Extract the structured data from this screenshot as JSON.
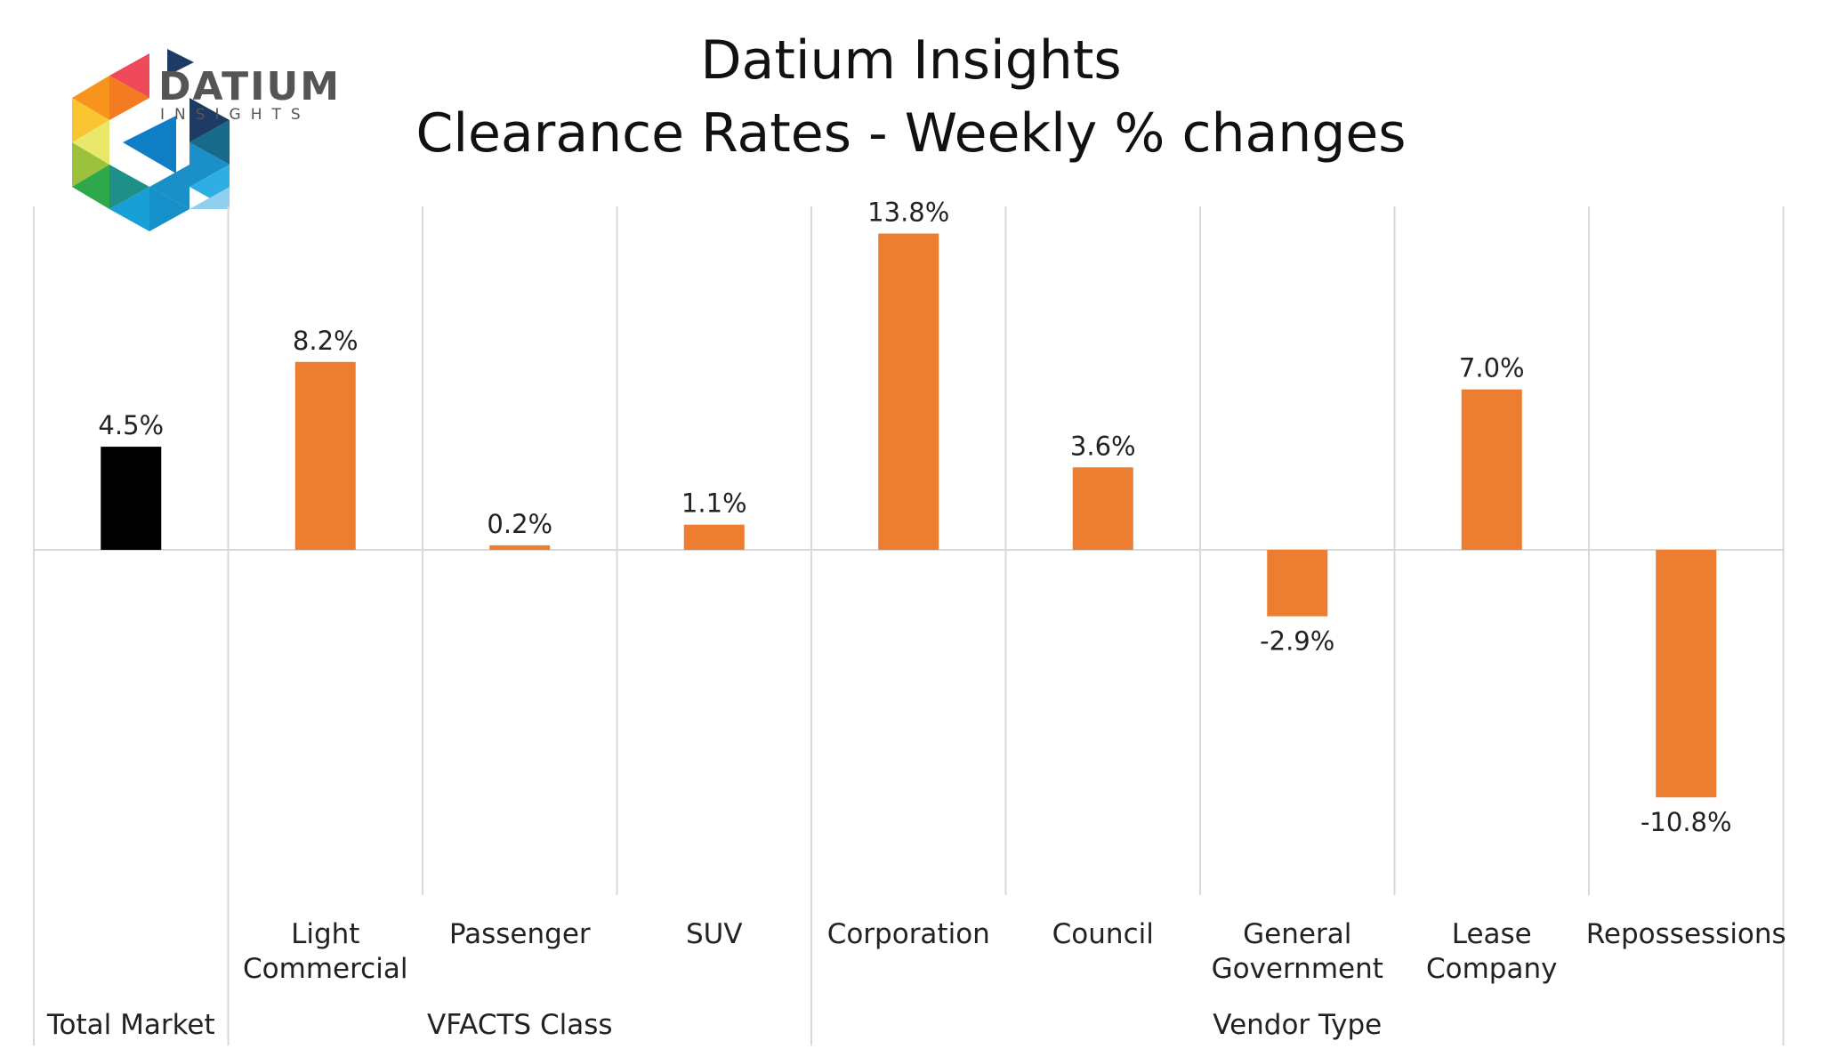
{
  "logo": {
    "name": "DATIUM",
    "sub": "INSIGHTS"
  },
  "chart_data": {
    "type": "bar",
    "title": [
      "Datium Insights",
      "Clearance Rates - Weekly % changes"
    ],
    "categories": [
      "Total Market",
      "Light Commercial",
      "Passenger",
      "SUV",
      "Corporation",
      "Council",
      "General Government",
      "Lease Company",
      "Repossessions"
    ],
    "category_lines": [
      [
        "Total Market"
      ],
      [
        "Light",
        "Commercial"
      ],
      [
        "Passenger"
      ],
      [
        "SUV"
      ],
      [
        "Corporation"
      ],
      [
        "Council"
      ],
      [
        "General",
        "Government"
      ],
      [
        "Lease",
        "Company"
      ],
      [
        "Repossessions"
      ]
    ],
    "values": [
      4.5,
      8.2,
      0.2,
      1.1,
      13.8,
      3.6,
      -2.9,
      7.0,
      -10.8
    ],
    "data_labels": [
      "4.5%",
      "8.2%",
      "0.2%",
      "1.1%",
      "13.8%",
      "3.6%",
      "-2.9%",
      "7.0%",
      "-10.8%"
    ],
    "groups": [
      {
        "label": "Total Market",
        "span": [
          0,
          0
        ]
      },
      {
        "label": "VFACTS Class",
        "span": [
          1,
          3
        ]
      },
      {
        "label": "Vendor Type",
        "span": [
          4,
          8
        ]
      }
    ],
    "colors": [
      "#000000",
      "#ED7D31",
      "#ED7D31",
      "#ED7D31",
      "#ED7D31",
      "#ED7D31",
      "#ED7D31",
      "#ED7D31",
      "#ED7D31"
    ],
    "ylim": [
      -13,
      13.8
    ],
    "grid": false,
    "legend": "none",
    "unit": "%"
  }
}
